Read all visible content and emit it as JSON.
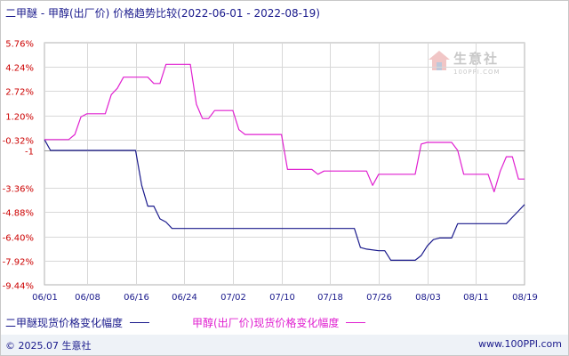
{
  "title": "二甲醚 - 甲醇(出厂价) 价格趋势比较(2022-06-01 - 2022-08-19)",
  "footer": {
    "copyright": "© 2025.07 生意社",
    "website": "www.100PPI.com"
  },
  "watermark": {
    "name": "生意社",
    "url": "100PPI.COM",
    "icon": "house-logo-icon"
  },
  "colors": {
    "series1": "#1a1a8c",
    "series2": "#e020d0",
    "grid": "#d8d8d8",
    "baseline": "#999999",
    "axis_text": "#cc0000",
    "x_axis_text": "#1a1a8c"
  },
  "chart_data": {
    "type": "line",
    "title": "二甲醚 - 甲醇(出厂价) 价格趋势比较(2022-06-01 - 2022-08-19)",
    "xlabel": "",
    "ylabel": "",
    "x_range": [
      "2022-06-01",
      "2022-08-19"
    ],
    "ylim": [
      -9.44,
      5.76
    ],
    "y_ticks": [
      "5.76%",
      "4.24%",
      "2.72%",
      "1.20%",
      "-0.32%",
      "-1",
      "-3.36%",
      "-4.88%",
      "-6.40%",
      "-7.92%",
      "-9.44%"
    ],
    "x_ticks": [
      "06/01",
      "06/08",
      "06/16",
      "06/24",
      "07/02",
      "07/10",
      "07/18",
      "07/26",
      "08/03",
      "08/11",
      "08/19"
    ],
    "grid": true,
    "legend_position": "bottom",
    "baseline_value": -1,
    "series": [
      {
        "name": "二甲醚现货价格变化幅度",
        "color": "#1a1a8c",
        "points": [
          [
            "2022-06-01",
            -0.32
          ],
          [
            "2022-06-02",
            -1.0
          ],
          [
            "2022-06-06",
            -1.0
          ],
          [
            "2022-06-10",
            -1.0
          ],
          [
            "2022-06-14",
            -1.0
          ],
          [
            "2022-06-15",
            -1.0
          ],
          [
            "2022-06-16",
            -1.0
          ],
          [
            "2022-06-17",
            -3.2
          ],
          [
            "2022-06-18",
            -4.5
          ],
          [
            "2022-06-19",
            -4.5
          ],
          [
            "2022-06-20",
            -5.3
          ],
          [
            "2022-06-21",
            -5.5
          ],
          [
            "2022-06-22",
            -5.9
          ],
          [
            "2022-06-24",
            -5.9
          ],
          [
            "2022-07-02",
            -5.9
          ],
          [
            "2022-07-10",
            -5.9
          ],
          [
            "2022-07-18",
            -5.9
          ],
          [
            "2022-07-22",
            -5.9
          ],
          [
            "2022-07-23",
            -7.1
          ],
          [
            "2022-07-24",
            -7.2
          ],
          [
            "2022-07-26",
            -7.3
          ],
          [
            "2022-07-27",
            -7.3
          ],
          [
            "2022-07-28",
            -7.9
          ],
          [
            "2022-08-01",
            -7.9
          ],
          [
            "2022-08-02",
            -7.6
          ],
          [
            "2022-08-03",
            -7.0
          ],
          [
            "2022-08-04",
            -6.6
          ],
          [
            "2022-08-05",
            -6.5
          ],
          [
            "2022-08-07",
            -6.5
          ],
          [
            "2022-08-08",
            -5.6
          ],
          [
            "2022-08-11",
            -5.6
          ],
          [
            "2022-08-15",
            -5.6
          ],
          [
            "2022-08-16",
            -5.6
          ],
          [
            "2022-08-17",
            -5.2
          ],
          [
            "2022-08-18",
            -4.8
          ],
          [
            "2022-08-19",
            -4.4
          ]
        ]
      },
      {
        "name": "甲醇(出厂价)现货价格变化幅度",
        "color": "#e020d0",
        "points": [
          [
            "2022-06-01",
            -0.32
          ],
          [
            "2022-06-05",
            -0.32
          ],
          [
            "2022-06-06",
            0.0
          ],
          [
            "2022-06-07",
            1.1
          ],
          [
            "2022-06-08",
            1.3
          ],
          [
            "2022-06-11",
            1.3
          ],
          [
            "2022-06-12",
            2.5
          ],
          [
            "2022-06-13",
            2.9
          ],
          [
            "2022-06-14",
            3.6
          ],
          [
            "2022-06-16",
            3.6
          ],
          [
            "2022-06-18",
            3.6
          ],
          [
            "2022-06-19",
            3.2
          ],
          [
            "2022-06-20",
            3.2
          ],
          [
            "2022-06-21",
            4.4
          ],
          [
            "2022-06-24",
            4.4
          ],
          [
            "2022-06-25",
            4.4
          ],
          [
            "2022-06-26",
            1.9
          ],
          [
            "2022-06-27",
            1.0
          ],
          [
            "2022-06-28",
            1.0
          ],
          [
            "2022-06-29",
            1.5
          ],
          [
            "2022-07-02",
            1.5
          ],
          [
            "2022-07-03",
            0.3
          ],
          [
            "2022-07-04",
            0.0
          ],
          [
            "2022-07-10",
            0.0
          ],
          [
            "2022-07-11",
            -2.2
          ],
          [
            "2022-07-15",
            -2.2
          ],
          [
            "2022-07-16",
            -2.5
          ],
          [
            "2022-07-17",
            -2.3
          ],
          [
            "2022-07-24",
            -2.3
          ],
          [
            "2022-07-25",
            -3.2
          ],
          [
            "2022-07-26",
            -2.5
          ],
          [
            "2022-08-01",
            -2.5
          ],
          [
            "2022-08-02",
            -0.6
          ],
          [
            "2022-08-03",
            -0.5
          ],
          [
            "2022-08-07",
            -0.5
          ],
          [
            "2022-08-08",
            -1.0
          ],
          [
            "2022-08-09",
            -2.5
          ],
          [
            "2022-08-11",
            -2.5
          ],
          [
            "2022-08-13",
            -2.5
          ],
          [
            "2022-08-14",
            -3.6
          ],
          [
            "2022-08-15",
            -2.3
          ],
          [
            "2022-08-16",
            -1.4
          ],
          [
            "2022-08-17",
            -1.4
          ],
          [
            "2022-08-18",
            -2.8
          ],
          [
            "2022-08-19",
            -2.8
          ]
        ]
      }
    ]
  }
}
